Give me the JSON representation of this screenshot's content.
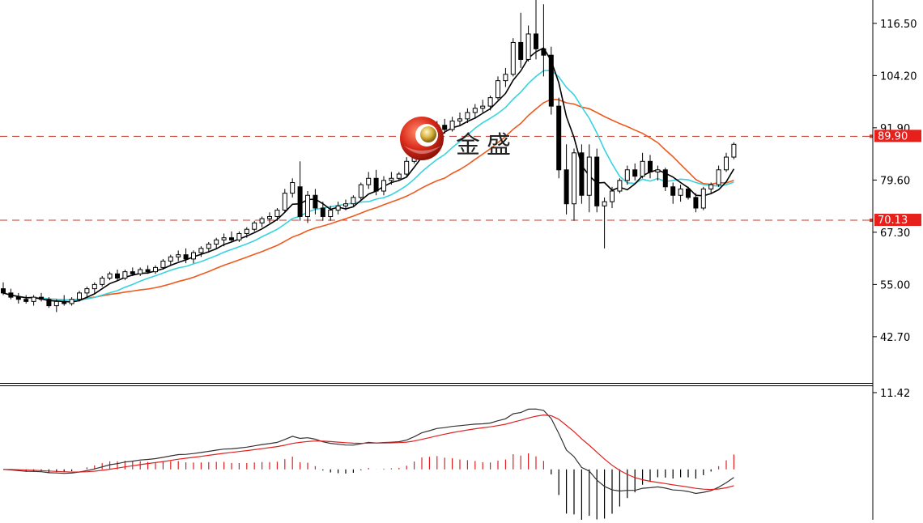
{
  "watermark": {
    "text": "金盛"
  },
  "colors": {
    "up_candle": "#000000",
    "down_candle": "#000000",
    "ma_fast": "#000000",
    "ma_mid": "#38d3e0",
    "ma_slow": "#ee5a1e",
    "hline": "#c0392b",
    "price_tag_bg": "#e8201c",
    "macd_pos": "#e02020",
    "macd_neg": "#000000",
    "macd_line": "#333333",
    "signal_line": "#e02020"
  },
  "chart_data": [
    {
      "type": "candlestick",
      "name": "price",
      "ylim": [
        32,
        122
      ],
      "y_ticks": [
        "116.50",
        "104.20",
        "91.90",
        "79.60",
        "67.30",
        "55.00",
        "42.70"
      ],
      "y_tick_values": [
        116.5,
        104.2,
        91.9,
        79.6,
        67.3,
        55.0,
        42.7
      ],
      "horizontal_lines": [
        {
          "value": 89.9,
          "label": "89.90"
        },
        {
          "value": 70.13,
          "label": "70.13"
        }
      ],
      "candles": [
        [
          54.0,
          55.5,
          52.5,
          53.0
        ],
        [
          53.0,
          54.0,
          51.5,
          52.0
        ],
        [
          52.0,
          53.0,
          50.5,
          51.5
        ],
        [
          51.5,
          52.5,
          50.5,
          51.0
        ],
        [
          51.0,
          52.5,
          50.0,
          52.0
        ],
        [
          52.0,
          53.0,
          51.0,
          51.5
        ],
        [
          51.5,
          52.0,
          49.5,
          50.0
        ],
        [
          50.0,
          51.5,
          48.5,
          51.0
        ],
        [
          51.0,
          52.5,
          50.0,
          50.5
        ],
        [
          50.5,
          52.0,
          50.0,
          51.5
        ],
        [
          51.5,
          53.5,
          51.0,
          53.0
        ],
        [
          53.0,
          54.5,
          52.0,
          54.0
        ],
        [
          54.0,
          55.5,
          53.0,
          55.0
        ],
        [
          55.0,
          57.0,
          54.5,
          56.5
        ],
        [
          56.5,
          58.0,
          56.0,
          57.5
        ],
        [
          57.5,
          58.5,
          56.0,
          56.5
        ],
        [
          56.5,
          58.5,
          56.0,
          58.0
        ],
        [
          58.0,
          59.0,
          57.0,
          57.5
        ],
        [
          57.5,
          59.0,
          57.0,
          58.5
        ],
        [
          58.5,
          59.5,
          57.5,
          58.0
        ],
        [
          58.0,
          59.5,
          57.5,
          59.0
        ],
        [
          59.0,
          61.0,
          58.5,
          60.5
        ],
        [
          60.5,
          62.0,
          59.5,
          61.5
        ],
        [
          61.5,
          63.0,
          60.5,
          62.0
        ],
        [
          62.0,
          63.5,
          60.0,
          61.0
        ],
        [
          61.0,
          63.0,
          60.0,
          62.5
        ],
        [
          62.5,
          64.0,
          61.5,
          63.5
        ],
        [
          63.5,
          65.0,
          62.5,
          64.5
        ],
        [
          64.5,
          66.0,
          63.5,
          65.5
        ],
        [
          65.5,
          67.0,
          64.0,
          66.0
        ],
        [
          66.0,
          67.5,
          65.0,
          65.5
        ],
        [
          65.5,
          67.5,
          65.0,
          67.0
        ],
        [
          67.0,
          68.5,
          66.0,
          68.0
        ],
        [
          68.0,
          70.0,
          67.5,
          69.5
        ],
        [
          69.5,
          71.0,
          68.5,
          70.5
        ],
        [
          70.5,
          72.0,
          69.5,
          71.0
        ],
        [
          71.0,
          73.0,
          70.0,
          72.5
        ],
        [
          72.5,
          77.5,
          72.0,
          76.5
        ],
        [
          76.5,
          80.0,
          75.5,
          79.0
        ],
        [
          78.0,
          84.0,
          70.0,
          71.0
        ],
        [
          71.0,
          77.0,
          69.5,
          76.0
        ],
        [
          76.0,
          77.5,
          71.5,
          73.0
        ],
        [
          73.0,
          74.5,
          70.0,
          71.0
        ],
        [
          71.0,
          73.5,
          70.0,
          72.5
        ],
        [
          72.5,
          74.5,
          71.5,
          73.5
        ],
        [
          73.5,
          75.0,
          72.5,
          74.0
        ],
        [
          74.0,
          76.0,
          73.5,
          75.5
        ],
        [
          75.5,
          79.0,
          75.0,
          78.5
        ],
        [
          78.5,
          81.5,
          77.5,
          80.0
        ],
        [
          80.0,
          82.0,
          76.0,
          77.0
        ],
        [
          77.0,
          80.5,
          76.0,
          79.5
        ],
        [
          79.5,
          81.5,
          78.5,
          80.0
        ],
        [
          80.0,
          81.5,
          79.5,
          81.0
        ],
        [
          81.0,
          85.0,
          80.5,
          84.0
        ],
        [
          84.0,
          89.0,
          83.5,
          88.5
        ],
        [
          88.5,
          92.0,
          87.5,
          91.5
        ],
        [
          91.5,
          93.0,
          89.0,
          90.5
        ],
        [
          90.5,
          93.5,
          88.0,
          92.5
        ],
        [
          92.5,
          94.0,
          90.5,
          91.5
        ],
        [
          91.5,
          94.5,
          91.0,
          93.5
        ],
        [
          93.5,
          95.5,
          92.5,
          94.0
        ],
        [
          94.0,
          96.5,
          93.0,
          95.5
        ],
        [
          95.5,
          97.5,
          94.0,
          96.5
        ],
        [
          96.5,
          98.5,
          95.5,
          97.0
        ],
        [
          97.0,
          99.5,
          96.0,
          99.0
        ],
        [
          99.0,
          104.0,
          98.5,
          103.0
        ],
        [
          103.0,
          106.0,
          101.5,
          104.5
        ],
        [
          104.5,
          113.0,
          104.0,
          112.0
        ],
        [
          112.0,
          119.0,
          106.0,
          108.0
        ],
        [
          108.0,
          116.0,
          107.5,
          114.0
        ],
        [
          114.0,
          122.0,
          108.0,
          110.5
        ],
        [
          110.5,
          121.0,
          104.0,
          109.0
        ],
        [
          109.0,
          111.0,
          95.0,
          97.0
        ],
        [
          97.0,
          99.0,
          80.0,
          82.0
        ],
        [
          82.0,
          88.0,
          71.5,
          74.0
        ],
        [
          74.0,
          87.0,
          70.0,
          86.0
        ],
        [
          86.0,
          88.0,
          74.0,
          76.0
        ],
        [
          76.0,
          88.0,
          72.0,
          85.0
        ],
        [
          85.0,
          87.0,
          72.0,
          73.5
        ],
        [
          73.5,
          75.5,
          63.5,
          74.5
        ],
        [
          74.5,
          78.0,
          73.0,
          77.0
        ],
        [
          77.0,
          80.0,
          76.5,
          79.5
        ],
        [
          79.5,
          83.0,
          78.5,
          82.0
        ],
        [
          82.0,
          83.5,
          79.5,
          80.5
        ],
        [
          80.5,
          86.0,
          80.0,
          84.0
        ],
        [
          84.0,
          85.5,
          80.0,
          81.5
        ],
        [
          81.5,
          83.0,
          79.5,
          82.0
        ],
        [
          82.0,
          82.5,
          77.0,
          78.0
        ],
        [
          78.0,
          79.0,
          74.0,
          76.0
        ],
        [
          76.0,
          78.5,
          74.5,
          77.5
        ],
        [
          77.5,
          78.0,
          75.0,
          75.5
        ],
        [
          75.5,
          76.5,
          72.0,
          73.0
        ],
        [
          73.0,
          78.0,
          72.5,
          77.5
        ],
        [
          77.5,
          79.0,
          76.5,
          78.5
        ],
        [
          78.5,
          83.0,
          78.0,
          82.0
        ],
        [
          82.0,
          86.0,
          81.5,
          85.0
        ],
        [
          85.0,
          88.5,
          84.5,
          88.0
        ]
      ]
    },
    {
      "type": "bar-line",
      "name": "macd",
      "ylim": [
        -7.5,
        12.5
      ],
      "y_ticks": [
        "11.42"
      ],
      "y_tick_values": [
        11.42
      ]
    }
  ]
}
